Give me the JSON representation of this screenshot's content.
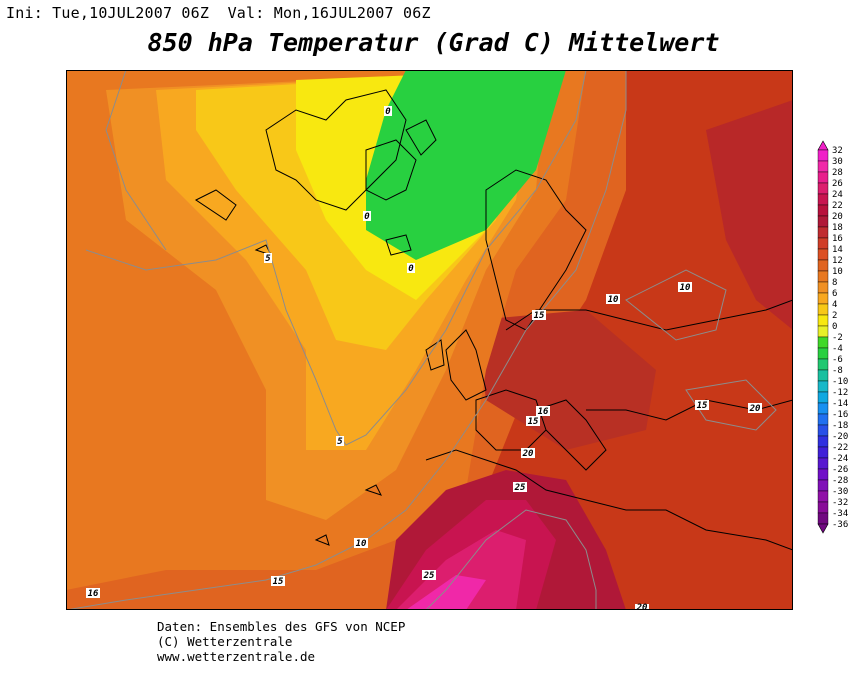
{
  "header": {
    "ini_label": "Ini:",
    "ini_value": "Tue,10JUL2007 06Z",
    "val_label": "Val:",
    "val_value": "Mon,16JUL2007 06Z"
  },
  "title": "850 hPa Temperatur (Grad C) Mittelwert",
  "map": {
    "contour_labels": [
      {
        "id": "c0a",
        "text": "0"
      },
      {
        "id": "c0b",
        "text": "0"
      },
      {
        "id": "c0c",
        "text": "0"
      },
      {
        "id": "c5a",
        "text": "5"
      },
      {
        "id": "c5b",
        "text": "5"
      },
      {
        "id": "c10a",
        "text": "10"
      },
      {
        "id": "c10b",
        "text": "10"
      },
      {
        "id": "c10c",
        "text": "10"
      },
      {
        "id": "c15a",
        "text": "15"
      },
      {
        "id": "c15b",
        "text": "15"
      },
      {
        "id": "c15c",
        "text": "15"
      },
      {
        "id": "c15d",
        "text": "15"
      },
      {
        "id": "c16a",
        "text": "16"
      },
      {
        "id": "c16b",
        "text": "16"
      },
      {
        "id": "c20a",
        "text": "20"
      },
      {
        "id": "c20b",
        "text": "20"
      },
      {
        "id": "c20c",
        "text": "20"
      },
      {
        "id": "c25a",
        "text": "25"
      },
      {
        "id": "c25b",
        "text": "25"
      }
    ]
  },
  "legend": {
    "values": [
      "32",
      "30",
      "28",
      "26",
      "24",
      "22",
      "20",
      "18",
      "16",
      "14",
      "12",
      "10",
      "8",
      "6",
      "4",
      "2",
      "0",
      "-2",
      "-4",
      "-6",
      "-8",
      "-10",
      "-12",
      "-14",
      "-16",
      "-18",
      "-20",
      "-22",
      "-24",
      "-26",
      "-28",
      "-30",
      "-32",
      "-34",
      "-36"
    ],
    "colors": [
      "#f020c8",
      "#f028a8",
      "#e81e8c",
      "#dc1e6e",
      "#c81450",
      "#b8103c",
      "#b01838",
      "#c02c30",
      "#d03e28",
      "#dc5024",
      "#e06420",
      "#e87820",
      "#f09024",
      "#f8a820",
      "#f8c818",
      "#f8e810",
      "#e8f028",
      "#40d828",
      "#28d040",
      "#20c870",
      "#18c0a0",
      "#18b8c8",
      "#10a8e0",
      "#1890f0",
      "#2070f0",
      "#2850e8",
      "#3030e0",
      "#4020d8",
      "#5818d0",
      "#7010c8",
      "#8010b8",
      "#9010a8",
      "#880c98",
      "#700880"
    ]
  },
  "footer": {
    "line1": "Daten: Ensembles des GFS von NCEP",
    "line2": "(C) Wetterzentrale",
    "line3": "www.wetterzentrale.de"
  }
}
